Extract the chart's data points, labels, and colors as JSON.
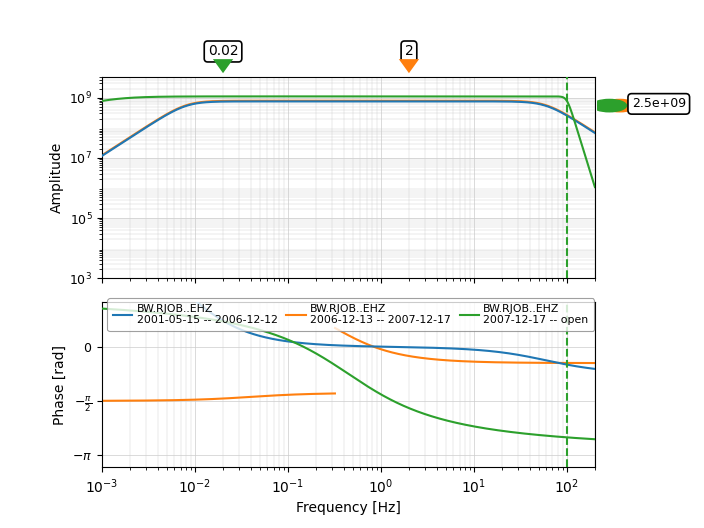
{
  "freq_min": 0.001,
  "freq_max": 200,
  "amp_ylim_log": [
    3,
    9.7
  ],
  "phase_ylim": [
    -3.5,
    1.3
  ],
  "xlabel": "Frequency [Hz]",
  "amp_ylabel": "Amplitude",
  "phase_ylabel": "Phase [rad]",
  "legend_entries": [
    {
      "label": "BW.RJOB..EHZ\n2001-05-15 -- 2006-12-12",
      "color": "#1f77b4"
    },
    {
      "label": "BW.RJOB..EHZ\n2006-12-13 -- 2007-12-17",
      "color": "#ff7f0e"
    },
    {
      "label": "BW.RJOB..EHZ\n2007-12-17 -- open",
      "color": "#2ca02c"
    }
  ],
  "vline_freq": 100,
  "pointer_green_freq": 0.02,
  "pointer_orange_freq": 2,
  "pointer_green_label": "0.02",
  "pointer_orange_label": "2",
  "annotation_text": "2.5e+09",
  "bg_color": "#ffffff",
  "grid_color": "#cccccc",
  "amp_yticks": [
    3,
    5,
    7,
    9
  ],
  "amp_ytick_labels": [
    "$10^3$",
    "$10^5$",
    "$10^7$",
    "$10^9$"
  ]
}
